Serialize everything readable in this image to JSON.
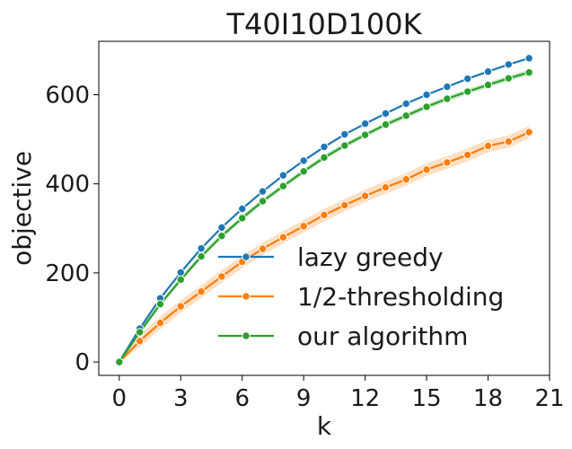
{
  "chart_data": {
    "type": "line",
    "title": "T40I10D100K",
    "xlabel": "k",
    "ylabel": "objective",
    "xlim": [
      -1,
      21
    ],
    "ylim": [
      -30,
      720
    ],
    "xticks": [
      0,
      3,
      6,
      9,
      12,
      15,
      18,
      21
    ],
    "yticks": [
      0,
      200,
      400,
      600
    ],
    "legend_position": "lower-right",
    "grid": false,
    "x": [
      0,
      1,
      2,
      3,
      4,
      5,
      6,
      7,
      8,
      9,
      10,
      11,
      12,
      13,
      14,
      15,
      16,
      17,
      18,
      19,
      20
    ],
    "series": [
      {
        "name": "lazy greedy",
        "color": "#1f77b4",
        "values": [
          0,
          75,
          143,
          201,
          255,
          302,
          344,
          383,
          419,
          452,
          483,
          511,
          535,
          558,
          580,
          600,
          618,
          636,
          652,
          668,
          682
        ]
      },
      {
        "name": "1/2-thresholding",
        "color": "#ff7f0e",
        "values": [
          0,
          47,
          88,
          125,
          158,
          192,
          225,
          254,
          280,
          305,
          330,
          352,
          373,
          392,
          410,
          432,
          448,
          465,
          485,
          495,
          516
        ],
        "band": 14
      },
      {
        "name": "our algorithm",
        "color": "#2ca02c",
        "values": [
          0,
          67,
          130,
          185,
          237,
          283,
          323,
          361,
          395,
          428,
          459,
          486,
          510,
          533,
          553,
          573,
          591,
          607,
          622,
          637,
          650
        ],
        "band": 6
      }
    ]
  }
}
